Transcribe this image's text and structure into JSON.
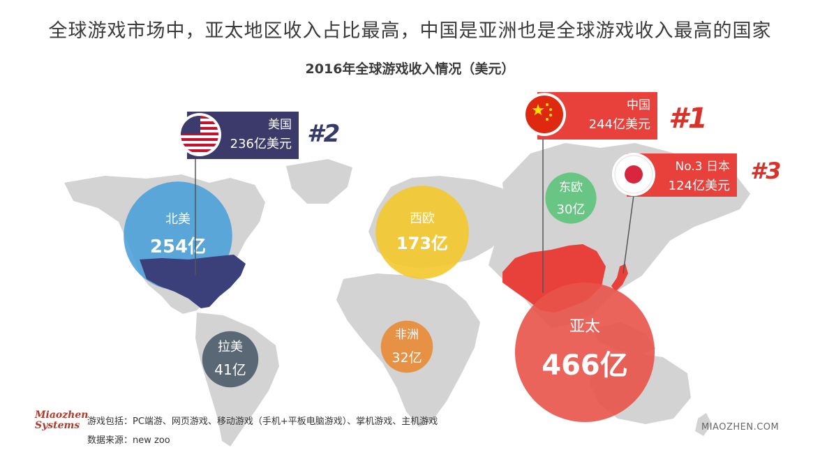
{
  "header": {
    "title": "全球游戏市场中，亚太地区收入占比最高，中国是亚洲也是全球游戏收入最高的国家",
    "subtitle": "2016年全球游戏收入情况（美元）"
  },
  "chart_data": {
    "type": "bubble-map",
    "unit": "亿",
    "regions": [
      {
        "key": "na",
        "name": "北美",
        "value": 254,
        "label": "254亿",
        "color": "#4a9fd9"
      },
      {
        "key": "latam",
        "name": "拉美",
        "value": 41,
        "label": "41亿",
        "color": "#4d5b6a"
      },
      {
        "key": "weu",
        "name": "西欧",
        "value": 173,
        "label": "173亿",
        "color": "#f3c92b"
      },
      {
        "key": "eeu",
        "name": "东欧",
        "value": 30,
        "label": "30亿",
        "color": "#5dc37a"
      },
      {
        "key": "af",
        "name": "非洲",
        "value": 32,
        "label": "32亿",
        "color": "#e98a34"
      },
      {
        "key": "apac",
        "name": "亚太",
        "value": 466,
        "label": "466亿",
        "color": "#e8534a"
      }
    ],
    "countries": [
      {
        "key": "cn",
        "name": "中国",
        "value_label": "244亿美元",
        "rank": "#1",
        "tag_color": "#e8403a",
        "rank_color": "#d9322b"
      },
      {
        "key": "us",
        "name": "美国",
        "value_label": "236亿美元",
        "rank": "#2",
        "tag_color": "#3b3a6b",
        "rank_color": "#363a6b"
      },
      {
        "key": "jp",
        "name": "No.3 日本",
        "value_label": "124亿美元",
        "rank": "#3",
        "tag_color": "#e8403a",
        "rank_color": "#d9322b"
      }
    ]
  },
  "footer": {
    "logo_text": "Miaozhen Systems",
    "note_scope": "游戏包括：PC端游、网页游戏、移动游戏（手机+平板电脑游戏）、掌机游戏、主机游戏",
    "note_source": "数据来源：new zoo",
    "watermark": "MIAOZHEN.COM"
  },
  "colors": {
    "land": "#d3d3d3",
    "usa_fill": "#3b3f7a",
    "china_fill": "#e8403a"
  }
}
